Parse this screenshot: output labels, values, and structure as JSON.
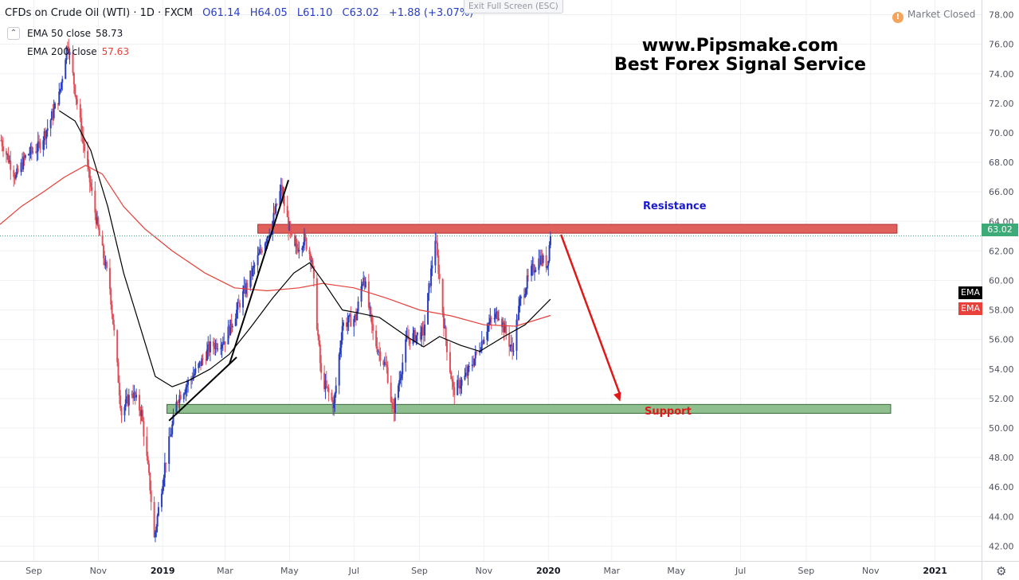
{
  "header": {
    "symbol": "CFDs on Crude Oil (WTI) · 1D · FXCM",
    "open": "O61.14",
    "high": "H64.05",
    "low": "L61.10",
    "close": "C63.02",
    "change": "+1.88 (+3.07%)"
  },
  "legend": {
    "toggle_icon": "chevron-icon",
    "ema50_label": "EMA 50 close",
    "ema50_value": "58.73",
    "ema200_label": "EMA 200 close",
    "ema200_value": "57.63"
  },
  "exit_fullscreen": "Exit Full Screen (ESC)",
  "market_status": {
    "icon": "!",
    "text": "Market Closed"
  },
  "watermark": {
    "line1": "www.Pipsmake.com",
    "line2": "Best Forex Signal Service"
  },
  "annotations": {
    "resistance": "Resistance",
    "support": "Support"
  },
  "price_tag": "63.02",
  "ema_tags": [
    "EMA",
    "EMA"
  ],
  "colors": {
    "up": "#2a3fbf",
    "down": "#e0505a",
    "resistance_zone": "#e0605c",
    "support_zone": "#8fbf8f",
    "ema50": "#000000",
    "ema200": "#e8403a",
    "arrow": "#e01818"
  },
  "chart_data": {
    "type": "candlestick",
    "ylim": [
      41,
      79
    ],
    "y_ticks": [
      "42.00",
      "44.00",
      "46.00",
      "48.00",
      "50.00",
      "52.00",
      "54.00",
      "56.00",
      "58.00",
      "60.00",
      "62.00",
      "64.00",
      "66.00",
      "68.00",
      "70.00",
      "72.00",
      "74.00",
      "76.00",
      "78.00"
    ],
    "x_ticks": [
      "Sep",
      "Nov",
      "2019",
      "Mar",
      "May",
      "Jul",
      "Sep",
      "Nov",
      "2020",
      "Mar",
      "May",
      "Jul",
      "Sep",
      "Nov",
      "2021"
    ],
    "x_tick_dates": [
      "2018-09-01",
      "2018-11-01",
      "2019-01-01",
      "2019-03-01",
      "2019-05-01",
      "2019-07-01",
      "2019-09-01",
      "2019-11-01",
      "2020-01-01",
      "2020-03-01",
      "2020-05-01",
      "2020-07-01",
      "2020-09-01",
      "2020-11-01",
      "2021-01-01"
    ],
    "x_start": "2018-07-31",
    "x_end": "2021-02-14",
    "last_price": 63.02,
    "price_anchors": [
      {
        "date": "2018-08-01",
        "price": 69.5
      },
      {
        "date": "2018-08-15",
        "price": 67.0
      },
      {
        "date": "2018-08-25",
        "price": 68.5
      },
      {
        "date": "2018-09-05",
        "price": 69.0
      },
      {
        "date": "2018-09-15",
        "price": 70.5
      },
      {
        "date": "2018-09-25",
        "price": 72.5
      },
      {
        "date": "2018-10-03",
        "price": 76.2
      },
      {
        "date": "2018-10-12",
        "price": 72.0
      },
      {
        "date": "2018-10-22",
        "price": 67.5
      },
      {
        "date": "2018-11-02",
        "price": 63.0
      },
      {
        "date": "2018-11-12",
        "price": 59.5
      },
      {
        "date": "2018-11-23",
        "price": 51.0
      },
      {
        "date": "2018-12-03",
        "price": 52.5
      },
      {
        "date": "2018-12-12",
        "price": 51.0
      },
      {
        "date": "2018-12-20",
        "price": 46.0
      },
      {
        "date": "2018-12-24",
        "price": 42.5
      },
      {
        "date": "2019-01-03",
        "price": 47.5
      },
      {
        "date": "2019-01-15",
        "price": 52.0
      },
      {
        "date": "2019-02-01",
        "price": 53.8
      },
      {
        "date": "2019-02-15",
        "price": 55.5
      },
      {
        "date": "2019-03-01",
        "price": 56.0
      },
      {
        "date": "2019-03-15",
        "price": 58.5
      },
      {
        "date": "2019-04-01",
        "price": 61.5
      },
      {
        "date": "2019-04-15",
        "price": 64.0
      },
      {
        "date": "2019-04-23",
        "price": 66.2
      },
      {
        "date": "2019-05-05",
        "price": 62.0
      },
      {
        "date": "2019-05-15",
        "price": 62.8
      },
      {
        "date": "2019-05-22",
        "price": 61.5
      },
      {
        "date": "2019-05-31",
        "price": 53.5
      },
      {
        "date": "2019-06-12",
        "price": 51.5
      },
      {
        "date": "2019-06-20",
        "price": 57.0
      },
      {
        "date": "2019-07-03",
        "price": 57.5
      },
      {
        "date": "2019-07-10",
        "price": 60.4
      },
      {
        "date": "2019-07-20",
        "price": 56.0
      },
      {
        "date": "2019-08-01",
        "price": 54.0
      },
      {
        "date": "2019-08-07",
        "price": 51.0
      },
      {
        "date": "2019-08-20",
        "price": 56.0
      },
      {
        "date": "2019-09-05",
        "price": 56.5
      },
      {
        "date": "2019-09-16",
        "price": 62.9
      },
      {
        "date": "2019-09-25",
        "price": 56.5
      },
      {
        "date": "2019-10-03",
        "price": 52.5
      },
      {
        "date": "2019-10-15",
        "price": 53.5
      },
      {
        "date": "2019-10-28",
        "price": 55.5
      },
      {
        "date": "2019-11-05",
        "price": 57.0
      },
      {
        "date": "2019-11-15",
        "price": 57.8
      },
      {
        "date": "2019-11-28",
        "price": 55.2
      },
      {
        "date": "2019-12-05",
        "price": 58.5
      },
      {
        "date": "2019-12-15",
        "price": 60.5
      },
      {
        "date": "2019-12-24",
        "price": 61.5
      },
      {
        "date": "2019-12-31",
        "price": 61.1
      },
      {
        "date": "2020-01-03",
        "price": 63.02
      }
    ],
    "ema50_anchors": [
      {
        "date": "2018-09-25",
        "price": 71.5
      },
      {
        "date": "2018-10-10",
        "price": 70.8
      },
      {
        "date": "2018-10-25",
        "price": 68.8
      },
      {
        "date": "2018-11-10",
        "price": 65.0
      },
      {
        "date": "2018-11-25",
        "price": 60.5
      },
      {
        "date": "2018-12-10",
        "price": 57.0
      },
      {
        "date": "2018-12-25",
        "price": 53.5
      },
      {
        "date": "2019-01-10",
        "price": 52.8
      },
      {
        "date": "2019-01-25",
        "price": 53.2
      },
      {
        "date": "2019-02-15",
        "price": 54.0
      },
      {
        "date": "2019-03-05",
        "price": 55.0
      },
      {
        "date": "2019-03-25",
        "price": 56.8
      },
      {
        "date": "2019-04-15",
        "price": 58.8
      },
      {
        "date": "2019-05-05",
        "price": 60.5
      },
      {
        "date": "2019-05-20",
        "price": 61.2
      },
      {
        "date": "2019-06-05",
        "price": 59.6
      },
      {
        "date": "2019-06-20",
        "price": 58.0
      },
      {
        "date": "2019-07-05",
        "price": 57.8
      },
      {
        "date": "2019-07-25",
        "price": 57.5
      },
      {
        "date": "2019-08-20",
        "price": 56.2
      },
      {
        "date": "2019-09-05",
        "price": 55.5
      },
      {
        "date": "2019-09-20",
        "price": 56.2
      },
      {
        "date": "2019-10-10",
        "price": 55.6
      },
      {
        "date": "2019-10-28",
        "price": 55.2
      },
      {
        "date": "2019-11-20",
        "price": 56.2
      },
      {
        "date": "2019-12-10",
        "price": 57.0
      },
      {
        "date": "2020-01-03",
        "price": 58.73
      }
    ],
    "ema200_anchors": [
      {
        "date": "2018-07-31",
        "price": 63.8
      },
      {
        "date": "2018-08-20",
        "price": 65.0
      },
      {
        "date": "2018-09-10",
        "price": 66.0
      },
      {
        "date": "2018-09-30",
        "price": 67.0
      },
      {
        "date": "2018-10-20",
        "price": 67.8
      },
      {
        "date": "2018-11-05",
        "price": 67.2
      },
      {
        "date": "2018-11-25",
        "price": 65.0
      },
      {
        "date": "2018-12-15",
        "price": 63.5
      },
      {
        "date": "2019-01-10",
        "price": 62.0
      },
      {
        "date": "2019-02-10",
        "price": 60.5
      },
      {
        "date": "2019-03-10",
        "price": 59.5
      },
      {
        "date": "2019-04-10",
        "price": 59.3
      },
      {
        "date": "2019-05-10",
        "price": 59.5
      },
      {
        "date": "2019-06-01",
        "price": 59.8
      },
      {
        "date": "2019-07-01",
        "price": 59.5
      },
      {
        "date": "2019-08-01",
        "price": 58.8
      },
      {
        "date": "2019-09-01",
        "price": 58.0
      },
      {
        "date": "2019-10-01",
        "price": 57.6
      },
      {
        "date": "2019-11-01",
        "price": 57.0
      },
      {
        "date": "2019-12-01",
        "price": 56.9
      },
      {
        "date": "2020-01-03",
        "price": 57.63
      }
    ],
    "resistance_zone": {
      "date_from": "2019-04-01",
      "date_to": "2020-11-26",
      "price_low": 63.2,
      "price_high": 63.8
    },
    "support_zone": {
      "date_from": "2019-01-05",
      "date_to": "2020-11-20",
      "price_low": 51.0,
      "price_high": 51.6
    },
    "trendlines": [
      {
        "date_from": "2019-01-07",
        "price_from": 50.5,
        "date_to": "2019-03-12",
        "price_to": 54.8
      },
      {
        "date_from": "2019-03-05",
        "price_from": 54.3,
        "date_to": "2019-04-30",
        "price_to": 66.8
      }
    ],
    "forecast_arrow": {
      "date_from": "2020-01-13",
      "price_from": 63.1,
      "date_to": "2020-03-09",
      "price_to": 51.8
    }
  }
}
